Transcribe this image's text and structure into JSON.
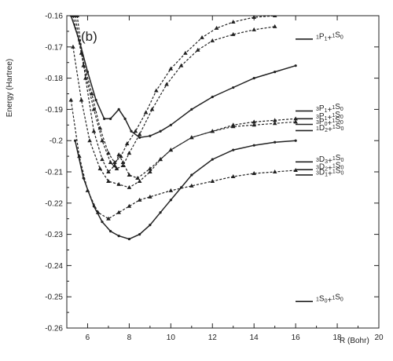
{
  "chart_data": {
    "type": "line",
    "panel_label": "(b)",
    "xlabel": "R (Bohr)",
    "ylabel": "Energy (Hartree)",
    "xlim": [
      5,
      20
    ],
    "ylim": [
      -0.26,
      -0.16
    ],
    "x_ticks": [
      "6",
      "8",
      "10",
      "12",
      "14",
      "16",
      "18",
      "20"
    ],
    "y_ticks": [
      "-0.16",
      "-0.17",
      "-0.18",
      "-0.19",
      "-0.2",
      "-0.21",
      "-0.22",
      "-0.23",
      "-0.24",
      "-0.25",
      "-0.26"
    ],
    "grid": false,
    "series": [
      {
        "style": "solid",
        "marker": "dot",
        "points": [
          [
            5.2,
            -0.16
          ],
          [
            5.6,
            -0.168
          ],
          [
            6.0,
            -0.178
          ],
          [
            6.4,
            -0.187
          ],
          [
            6.8,
            -0.193
          ],
          [
            7.1,
            -0.193
          ],
          [
            7.5,
            -0.19
          ],
          [
            7.8,
            -0.193
          ],
          [
            8.1,
            -0.197
          ],
          [
            8.5,
            -0.199
          ],
          [
            9.0,
            -0.1985
          ],
          [
            9.5,
            -0.197
          ],
          [
            10,
            -0.195
          ],
          [
            11,
            -0.19
          ],
          [
            12,
            -0.186
          ],
          [
            13,
            -0.183
          ],
          [
            14,
            -0.18
          ],
          [
            15,
            -0.178
          ],
          [
            16,
            -0.176
          ]
        ]
      },
      {
        "style": "dashed",
        "marker": "triangle",
        "points": [
          [
            5.3,
            -0.16
          ],
          [
            5.7,
            -0.172
          ],
          [
            6.2,
            -0.185
          ],
          [
            6.6,
            -0.196
          ],
          [
            7.0,
            -0.204
          ],
          [
            7.3,
            -0.207
          ],
          [
            7.6,
            -0.205
          ],
          [
            7.9,
            -0.201
          ],
          [
            8.3,
            -0.197
          ],
          [
            8.8,
            -0.191
          ],
          [
            9.3,
            -0.184
          ],
          [
            10,
            -0.177
          ],
          [
            10.7,
            -0.172
          ],
          [
            11.5,
            -0.167
          ],
          [
            12.2,
            -0.164
          ],
          [
            13,
            -0.162
          ],
          [
            14,
            -0.1605
          ],
          [
            15,
            -0.16
          ]
        ]
      },
      {
        "style": "dashed",
        "marker": "triangle",
        "points": [
          [
            5.4,
            -0.16
          ],
          [
            5.8,
            -0.176
          ],
          [
            6.3,
            -0.19
          ],
          [
            6.7,
            -0.2
          ],
          [
            7.1,
            -0.207
          ],
          [
            7.4,
            -0.209
          ],
          [
            7.7,
            -0.208
          ],
          [
            8.0,
            -0.204
          ],
          [
            8.5,
            -0.198
          ],
          [
            9.1,
            -0.19
          ],
          [
            9.8,
            -0.182
          ],
          [
            10.5,
            -0.176
          ],
          [
            11.3,
            -0.171
          ],
          [
            12,
            -0.168
          ],
          [
            13,
            -0.166
          ],
          [
            14,
            -0.1645
          ],
          [
            15,
            -0.1635
          ]
        ]
      },
      {
        "style": "dashed",
        "marker": "triangle",
        "points": [
          [
            5.5,
            -0.16
          ],
          [
            5.9,
            -0.18
          ],
          [
            6.3,
            -0.197
          ],
          [
            6.7,
            -0.206
          ],
          [
            7.0,
            -0.21
          ],
          [
            7.3,
            -0.208
          ],
          [
            7.5,
            -0.2045
          ],
          [
            7.7,
            -0.207
          ],
          [
            8.0,
            -0.211
          ],
          [
            8.4,
            -0.212
          ],
          [
            9.0,
            -0.209
          ],
          [
            9.5,
            -0.206
          ],
          [
            10,
            -0.203
          ],
          [
            11,
            -0.199
          ],
          [
            12,
            -0.197
          ],
          [
            13,
            -0.195
          ],
          [
            14,
            -0.194
          ],
          [
            15,
            -0.1935
          ],
          [
            16,
            -0.193
          ]
        ]
      },
      {
        "style": "dashed",
        "marker": "triangle",
        "points": [
          [
            5.3,
            -0.17
          ],
          [
            5.7,
            -0.187
          ],
          [
            6.1,
            -0.2
          ],
          [
            6.6,
            -0.209
          ],
          [
            7.0,
            -0.213
          ],
          [
            7.5,
            -0.214
          ],
          [
            8.0,
            -0.215
          ],
          [
            8.5,
            -0.213
          ],
          [
            9.0,
            -0.21
          ],
          [
            9.5,
            -0.206
          ],
          [
            10,
            -0.203
          ],
          [
            11,
            -0.199
          ],
          [
            12,
            -0.197
          ],
          [
            13,
            -0.1955
          ],
          [
            14,
            -0.195
          ],
          [
            15,
            -0.1945
          ],
          [
            16,
            -0.194
          ]
        ]
      },
      {
        "style": "dashed",
        "marker": "triangle",
        "points": [
          [
            5.2,
            -0.187
          ],
          [
            5.6,
            -0.205
          ],
          [
            6.0,
            -0.216
          ],
          [
            6.5,
            -0.223
          ],
          [
            7.0,
            -0.225
          ],
          [
            7.5,
            -0.223
          ],
          [
            8.0,
            -0.221
          ],
          [
            8.5,
            -0.219
          ],
          [
            9.0,
            -0.218
          ],
          [
            10,
            -0.216
          ],
          [
            11,
            -0.2145
          ],
          [
            12,
            -0.213
          ],
          [
            13,
            -0.2115
          ],
          [
            14,
            -0.2105
          ],
          [
            15,
            -0.21
          ],
          [
            16,
            -0.2095
          ]
        ]
      },
      {
        "style": "solid",
        "marker": "dot",
        "points": [
          [
            5.4,
            -0.2
          ],
          [
            5.8,
            -0.212
          ],
          [
            6.3,
            -0.221
          ],
          [
            6.7,
            -0.226
          ],
          [
            7.1,
            -0.229
          ],
          [
            7.5,
            -0.2305
          ],
          [
            8.0,
            -0.2315
          ],
          [
            8.5,
            -0.23
          ],
          [
            9.0,
            -0.227
          ],
          [
            9.5,
            -0.223
          ],
          [
            10,
            -0.219
          ],
          [
            10.5,
            -0.215
          ],
          [
            11,
            -0.211
          ],
          [
            12,
            -0.206
          ],
          [
            13,
            -0.203
          ],
          [
            14,
            -0.2015
          ],
          [
            15,
            -0.2005
          ],
          [
            16,
            -0.2
          ]
        ]
      }
    ],
    "asymptotes": [
      {
        "y": -0.1675,
        "label": [
          [
            "",
            "1"
          ],
          [
            "P",
            "1"
          ],
          [
            "+",
            "1"
          ],
          [
            "S",
            "0"
          ]
        ]
      },
      {
        "y": -0.1905,
        "label": [
          [
            "",
            "3"
          ],
          [
            "P",
            "1"
          ],
          [
            "+",
            "1"
          ],
          [
            "S",
            "0"
          ]
        ]
      },
      {
        "y": -0.193,
        "label": [
          [
            "",
            "3"
          ],
          [
            "P",
            "1"
          ],
          [
            "+",
            "1"
          ],
          [
            "S",
            "0"
          ]
        ]
      },
      {
        "y": -0.1948,
        "label": [
          [
            "",
            "3"
          ],
          [
            "P",
            "0"
          ],
          [
            "+",
            "1"
          ],
          [
            "S",
            "0"
          ]
        ]
      },
      {
        "y": -0.1968,
        "label": [
          [
            "",
            "1"
          ],
          [
            "D",
            "2"
          ],
          [
            "+",
            "1"
          ],
          [
            "S",
            "0"
          ]
        ]
      },
      {
        "y": -0.2068,
        "label": [
          [
            "",
            "3"
          ],
          [
            "D",
            "3"
          ],
          [
            "+",
            "1"
          ],
          [
            "S",
            "0"
          ]
        ]
      },
      {
        "y": -0.2093,
        "label": [
          [
            "",
            "3"
          ],
          [
            "D",
            "2"
          ],
          [
            "+",
            "1"
          ],
          [
            "S",
            "0"
          ]
        ]
      },
      {
        "y": -0.211,
        "label": [
          [
            "",
            "3"
          ],
          [
            "D",
            "1"
          ],
          [
            "+",
            "1"
          ],
          [
            "S",
            "0"
          ]
        ]
      },
      {
        "y": -0.2515,
        "label": [
          [
            "",
            "1"
          ],
          [
            "S",
            "0"
          ],
          [
            "+",
            "1"
          ],
          [
            "S",
            "0"
          ]
        ]
      }
    ]
  }
}
